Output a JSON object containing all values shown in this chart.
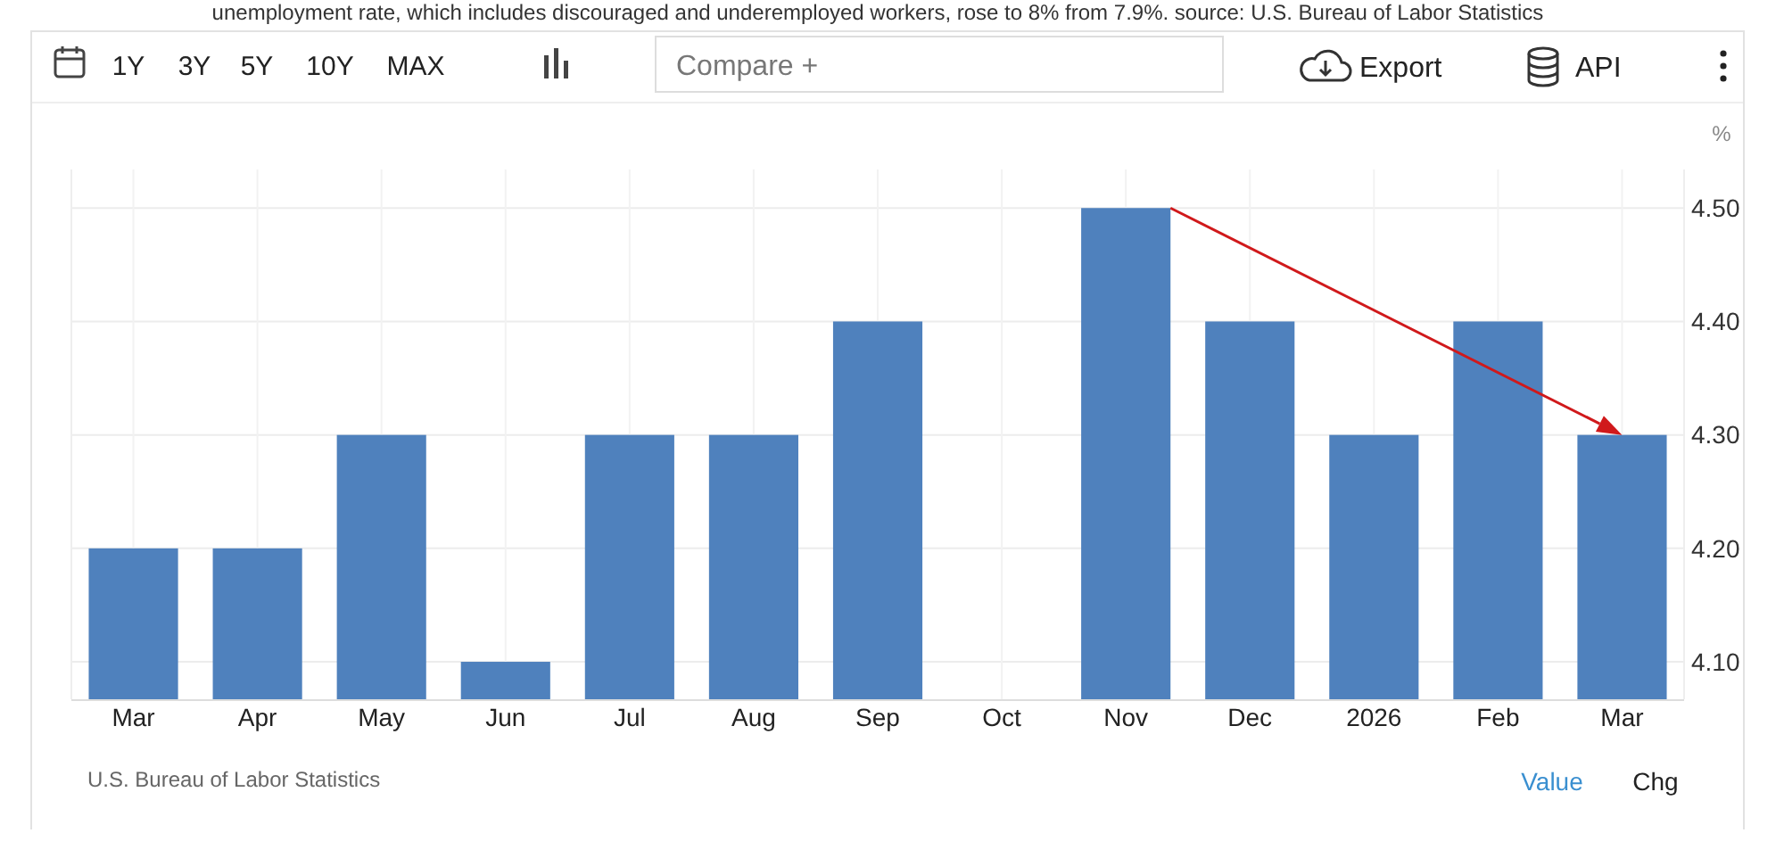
{
  "chart_data": {
    "type": "bar",
    "title": "unemployment rate, which includes discouraged and underemployed workers, rose to 8% from 7.9%. source: U.S. Bureau of Labor Statistics",
    "ylabel": "%",
    "categories": [
      "Mar",
      "Apr",
      "May",
      "Jun",
      "Jul",
      "Aug",
      "Sep",
      "Oct",
      "Nov",
      "Dec",
      "2026",
      "Feb",
      "Mar"
    ],
    "values": [
      4.2,
      4.2,
      4.3,
      4.1,
      4.3,
      4.3,
      4.4,
      null,
      4.5,
      4.4,
      4.3,
      4.4,
      4.3
    ],
    "color": "#4f81bd",
    "ylim": [
      4.067,
      4.534
    ],
    "yticks": [
      {
        "value": 4.1,
        "label": "4.10"
      },
      {
        "value": 4.2,
        "label": "4.20"
      },
      {
        "value": 4.3,
        "label": "4.30"
      },
      {
        "value": 4.4,
        "label": "4.40"
      },
      {
        "value": 4.5,
        "label": "4.50"
      }
    ],
    "grid": true,
    "annotations": [
      "1Y",
      "3Y",
      "5Y",
      "10Y",
      "MAX",
      "Compare +",
      "Export",
      "API",
      "U.S. Bureau of Labor Statistics",
      "Value",
      "Chg"
    ]
  }
}
